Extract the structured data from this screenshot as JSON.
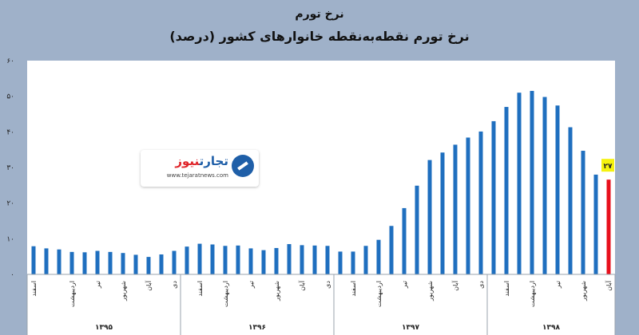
{
  "header": {
    "title": "نرخ تورم",
    "subtitle": "نرخ تورم نقطه‌به‌نقطه خانوارهای کشور (درصد)"
  },
  "logo": {
    "name_part1": "تجارت",
    "name_part2": "نیوز",
    "url": "www.tejaratnews.com"
  },
  "chart_data": {
    "type": "bar",
    "title": "نرخ تورم نقطه‌به‌نقطه خانوارهای کشور (درصد)",
    "ylim": [
      0,
      60
    ],
    "yticks": [
      0,
      10,
      20,
      30,
      40,
      50,
      60
    ],
    "ytick_labels": [
      "۰",
      "۱۰",
      "۲۰",
      "۳۰",
      "۴۰",
      "۵۰",
      "۶۰"
    ],
    "grid": false,
    "colors": {
      "bar": "#1f6fbf",
      "highlight": "#e8101c",
      "label_box": "#f5f20f"
    },
    "values": [
      7.9,
      7.3,
      7.0,
      6.3,
      6.2,
      6.6,
      6.3,
      6.0,
      5.5,
      4.9,
      5.6,
      6.6,
      7.8,
      8.6,
      8.4,
      8.0,
      8.1,
      7.3,
      6.8,
      7.4,
      8.5,
      8.2,
      8.1,
      8.0,
      6.4,
      6.4,
      8.0,
      9.7,
      13.6,
      18.6,
      24.9,
      32.1,
      34.2,
      36.4,
      38.4,
      40.1,
      43.0,
      47.0,
      51.0,
      51.5,
      49.8,
      47.4,
      41.3,
      34.7,
      28.0,
      26.6
    ],
    "highlight_index": 45,
    "highlight_label": "۲۷",
    "xtick_labels": [
      {
        "index": 0,
        "text": "اسفند"
      },
      {
        "index": 3,
        "text": "اردیبهشت"
      },
      {
        "index": 5,
        "text": "تیر"
      },
      {
        "index": 7,
        "text": "شهریور"
      },
      {
        "index": 9,
        "text": "آبان"
      },
      {
        "index": 11,
        "text": "دی"
      },
      {
        "index": 13,
        "text": "اسفند"
      },
      {
        "index": 15,
        "text": "اردیبهشت"
      },
      {
        "index": 17,
        "text": "تیر"
      },
      {
        "index": 19,
        "text": "شهریور"
      },
      {
        "index": 21,
        "text": "آبان"
      },
      {
        "index": 23,
        "text": "دی"
      },
      {
        "index": 25,
        "text": "اسفند"
      },
      {
        "index": 27,
        "text": "اردیبهشت"
      },
      {
        "index": 29,
        "text": "تیر"
      },
      {
        "index": 31,
        "text": "شهریور"
      },
      {
        "index": 33,
        "text": "آبان"
      },
      {
        "index": 35,
        "text": "دی"
      },
      {
        "index": 37,
        "text": "اسفند"
      },
      {
        "index": 39,
        "text": "اردیبهشت"
      },
      {
        "index": 41,
        "text": "تیر"
      },
      {
        "index": 43,
        "text": "شهریور"
      },
      {
        "index": 45,
        "text": "آبان"
      }
    ],
    "years": [
      {
        "label": "۱۳۹۵",
        "start": 0,
        "end": 12
      },
      {
        "label": "۱۳۹۶",
        "start": 12,
        "end": 24
      },
      {
        "label": "۱۳۹۷",
        "start": 24,
        "end": 36
      },
      {
        "label": "۱۳۹۸",
        "start": 36,
        "end": 46
      }
    ]
  }
}
